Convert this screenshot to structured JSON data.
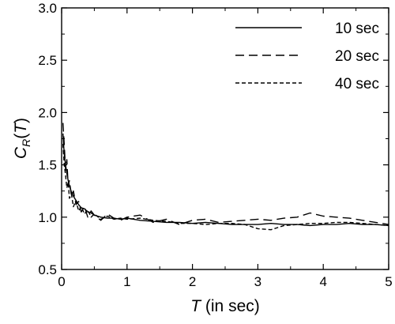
{
  "chart_data": {
    "type": "line",
    "title": "",
    "xlabel": {
      "var": "T",
      "rest": " (in sec)"
    },
    "ylabel": {
      "main": "C",
      "sub": "R",
      "open": "(",
      "arg": "T",
      "close": ")"
    },
    "xlim": [
      0,
      5
    ],
    "ylim": [
      0.5,
      3.0
    ],
    "xticks": [
      "0",
      "1",
      "2",
      "3",
      "4",
      "5"
    ],
    "yticks": [
      "0.5",
      "1.0",
      "1.5",
      "2.0",
      "2.5",
      "3.0"
    ],
    "grid": false,
    "legend_position": "top-right",
    "series": [
      {
        "name": "10 sec",
        "line_style": "solid",
        "x": [
          0.02,
          0.04,
          0.06,
          0.08,
          0.1,
          0.12,
          0.15,
          0.18,
          0.22,
          0.26,
          0.3,
          0.35,
          0.4,
          0.45,
          0.5,
          0.6,
          0.7,
          0.8,
          0.9,
          1.0,
          1.2,
          1.4,
          1.6,
          1.8,
          2.0,
          2.2,
          2.4,
          2.6,
          2.8,
          3.0,
          3.2,
          3.4,
          3.6,
          3.8,
          4.0,
          4.2,
          4.4,
          4.6,
          4.8,
          5.0
        ],
        "values": [
          1.8,
          1.6,
          1.5,
          1.42,
          1.35,
          1.3,
          1.24,
          1.2,
          1.16,
          1.12,
          1.09,
          1.08,
          1.05,
          1.04,
          1.02,
          1.0,
          0.99,
          0.99,
          0.98,
          0.99,
          0.97,
          0.96,
          0.95,
          0.95,
          0.94,
          0.95,
          0.94,
          0.93,
          0.93,
          0.93,
          0.94,
          0.93,
          0.93,
          0.92,
          0.93,
          0.93,
          0.94,
          0.93,
          0.93,
          0.92
        ]
      },
      {
        "name": "20 sec",
        "line_style": "dashed",
        "x": [
          0.02,
          0.04,
          0.06,
          0.08,
          0.1,
          0.12,
          0.15,
          0.18,
          0.22,
          0.26,
          0.3,
          0.35,
          0.4,
          0.45,
          0.5,
          0.6,
          0.7,
          0.8,
          0.9,
          1.0,
          1.2,
          1.4,
          1.6,
          1.8,
          2.0,
          2.2,
          2.4,
          2.6,
          2.8,
          3.0,
          3.2,
          3.4,
          3.6,
          3.8,
          4.0,
          4.2,
          4.4,
          4.6,
          4.8,
          5.0
        ],
        "values": [
          1.9,
          1.7,
          1.45,
          1.55,
          1.3,
          1.35,
          1.2,
          1.25,
          1.12,
          1.15,
          1.05,
          1.1,
          1.0,
          1.06,
          1.02,
          0.97,
          1.03,
          0.99,
          0.97,
          1.0,
          1.02,
          0.95,
          0.98,
          0.93,
          0.97,
          0.98,
          0.95,
          0.96,
          0.97,
          0.98,
          0.97,
          0.99,
          1.0,
          1.04,
          1.01,
          1.0,
          0.99,
          0.97,
          0.95,
          0.93
        ]
      },
      {
        "name": "40 sec",
        "line_style": "dotted",
        "x": [
          0.02,
          0.04,
          0.06,
          0.08,
          0.1,
          0.12,
          0.15,
          0.18,
          0.22,
          0.26,
          0.3,
          0.35,
          0.4,
          0.45,
          0.5,
          0.6,
          0.7,
          0.8,
          0.9,
          1.0,
          1.2,
          1.4,
          1.6,
          1.8,
          2.0,
          2.2,
          2.4,
          2.6,
          2.8,
          3.0,
          3.2,
          3.4,
          3.6,
          3.8,
          4.0,
          4.2,
          4.4,
          4.6,
          4.8,
          5.0
        ],
        "values": [
          1.7,
          1.5,
          1.4,
          1.28,
          1.33,
          1.18,
          1.22,
          1.1,
          1.16,
          1.06,
          1.1,
          1.03,
          1.07,
          1.0,
          1.03,
          0.98,
          1.01,
          0.98,
          0.99,
          0.98,
          0.99,
          0.97,
          0.96,
          0.94,
          0.94,
          0.93,
          0.94,
          0.94,
          0.93,
          0.89,
          0.88,
          0.92,
          0.93,
          0.94,
          0.94,
          0.95,
          0.95,
          0.94,
          0.93,
          0.92
        ]
      }
    ]
  }
}
